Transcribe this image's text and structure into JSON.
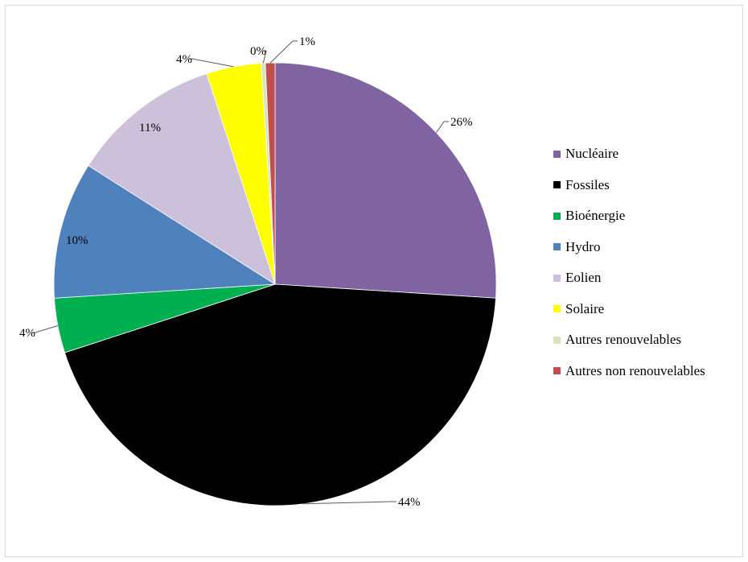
{
  "chart_data": {
    "type": "pie",
    "slices": [
      {
        "label": "Nucléaire",
        "value": 26,
        "display": "26%",
        "color": "#8064a2"
      },
      {
        "label": "Fossiles",
        "value": 44,
        "display": "44%",
        "color": "#000000"
      },
      {
        "label": "Bioénergie",
        "value": 4,
        "display": "4%",
        "color": "#00b050"
      },
      {
        "label": "Hydro",
        "value": 10,
        "display": "10%",
        "color": "#4f81bd"
      },
      {
        "label": "Eolien",
        "value": 11,
        "display": "11%",
        "color": "#ccc0da"
      },
      {
        "label": "Solaire",
        "value": 4,
        "display": "4%",
        "color": "#ffff00"
      },
      {
        "label": "Autres renouvelables",
        "value": 0.3,
        "display": "0%",
        "color": "#d7e4bd"
      },
      {
        "label": "Autres non renouvelables",
        "value": 0.7,
        "display": "1%",
        "color": "#c0504d"
      }
    ],
    "legend_position": "right",
    "start_angle": "12 o'clock",
    "direction": "clockwise"
  }
}
